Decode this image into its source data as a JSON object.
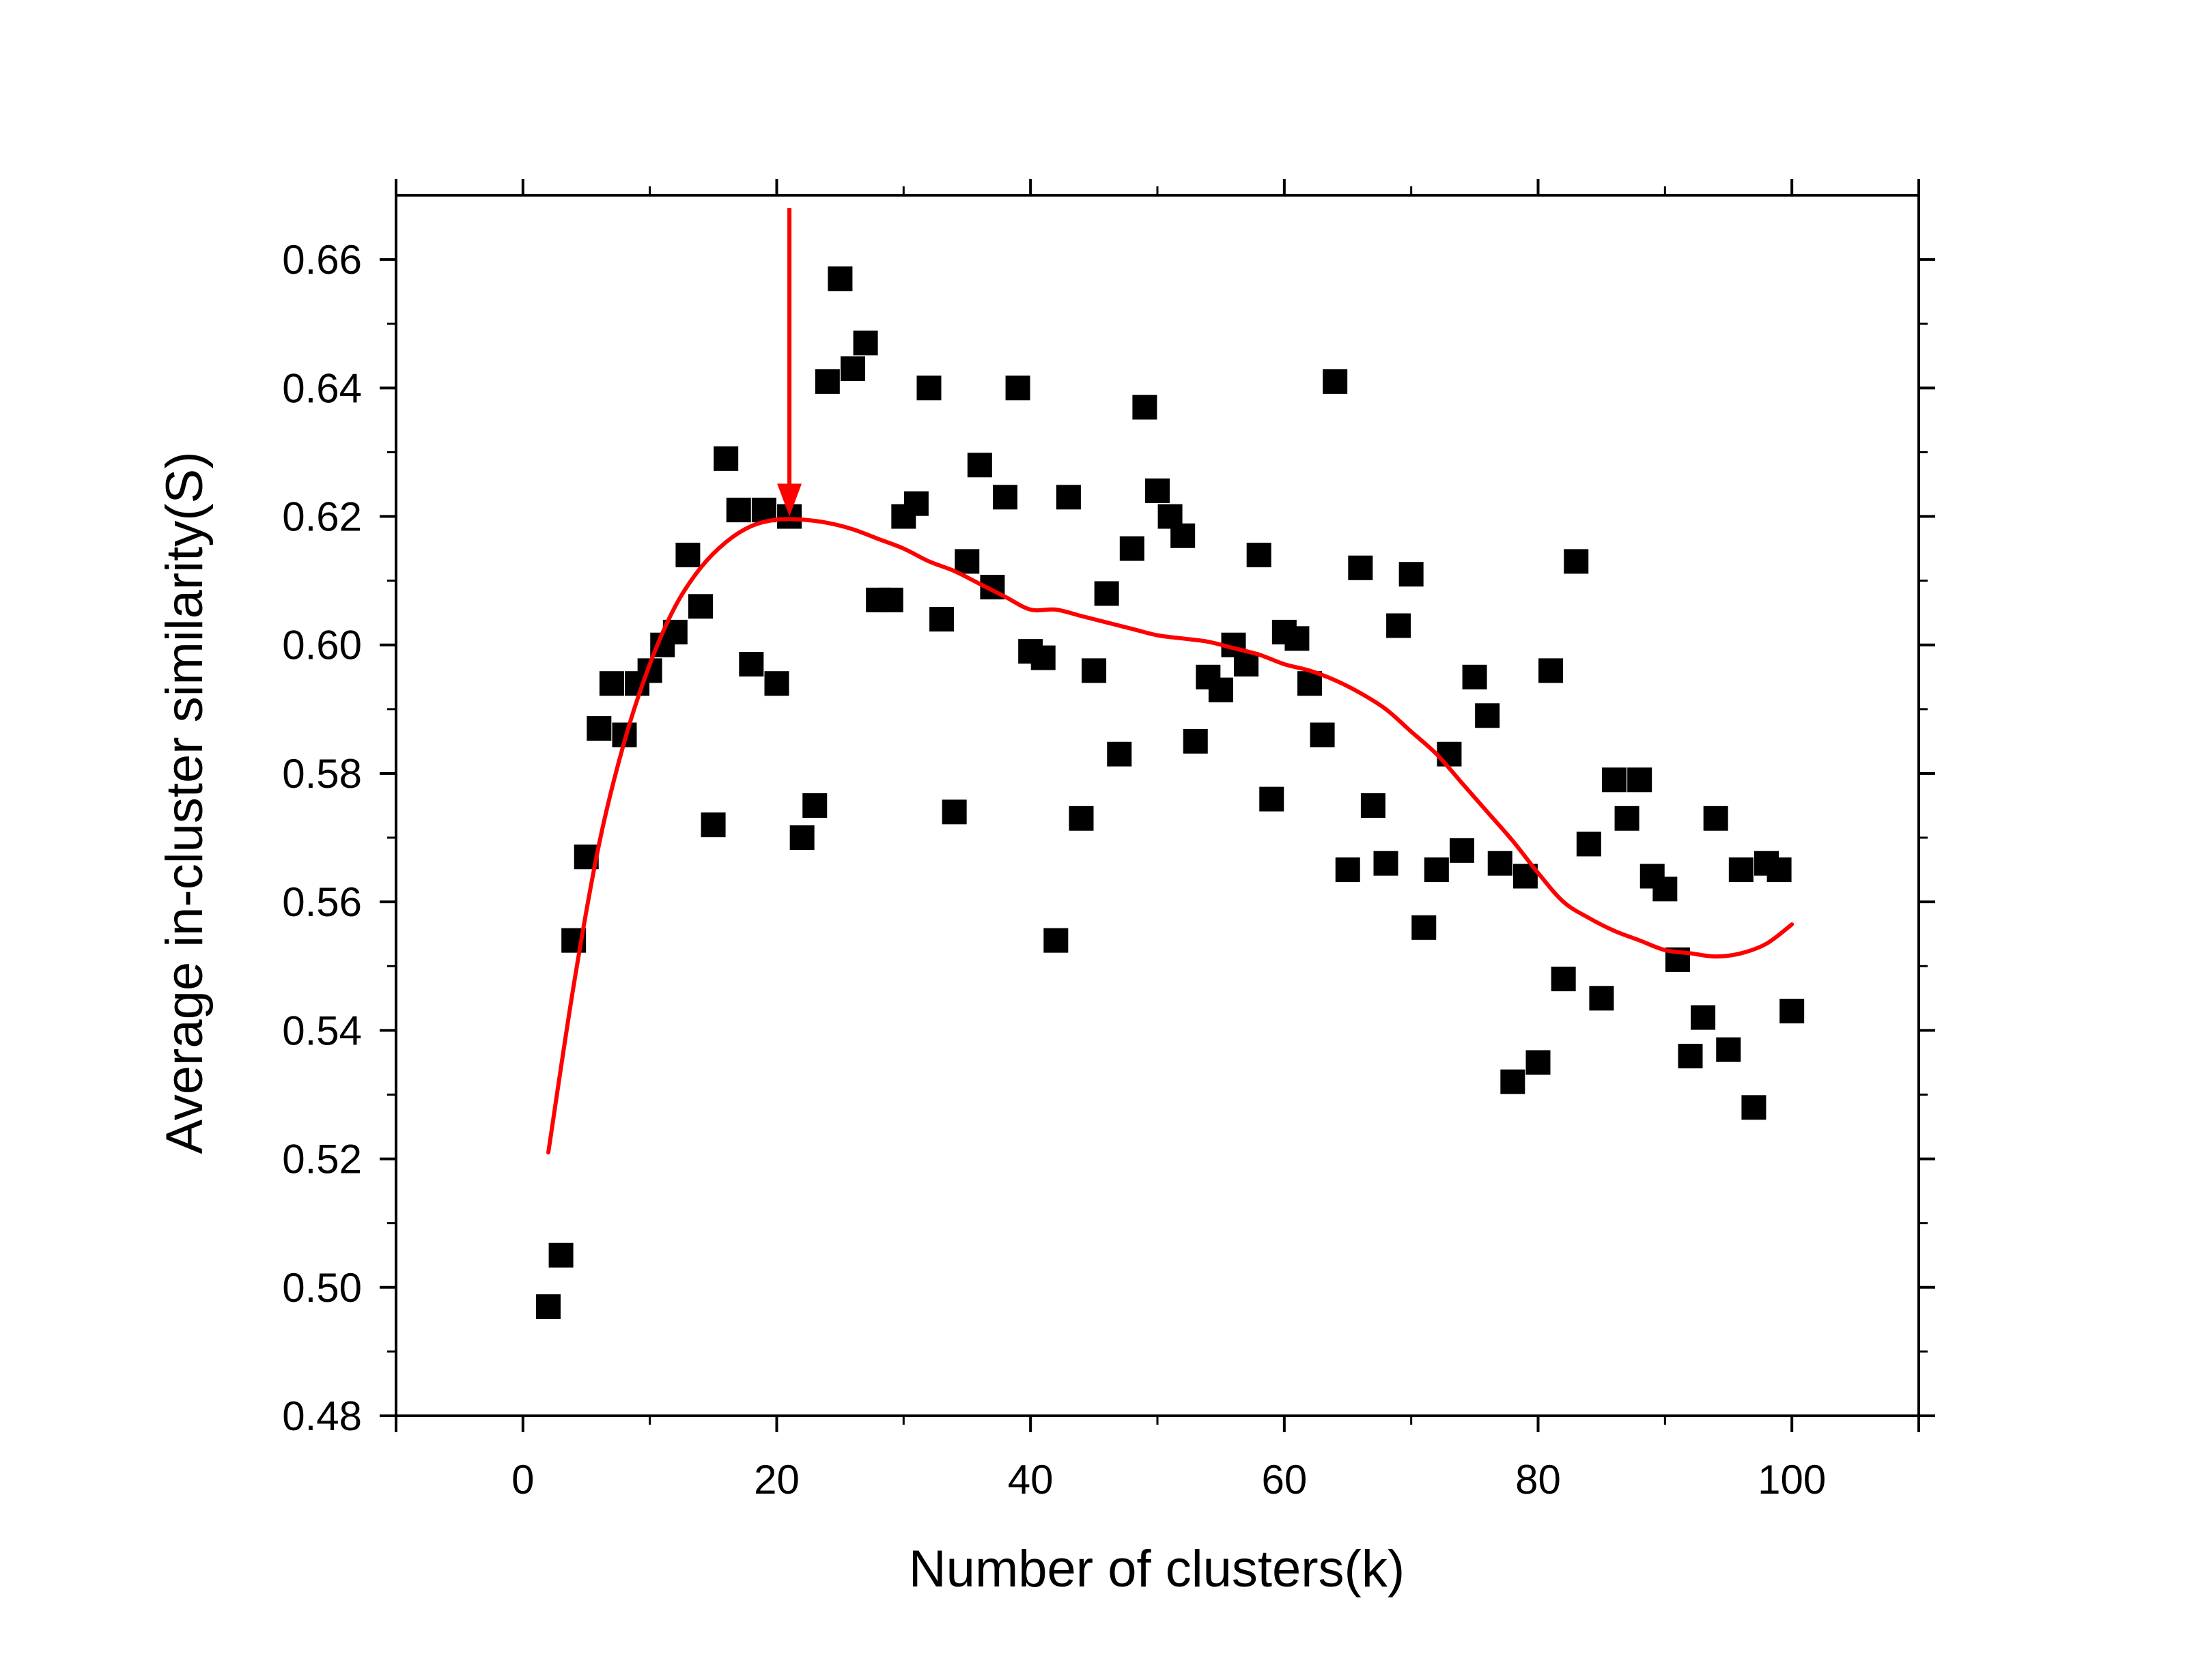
{
  "chart_data": {
    "type": "scatter",
    "title": "",
    "xlabel": "Number of clusters(k)",
    "ylabel": "Average in-cluster similarity(S)",
    "xlim": [
      -10,
      110
    ],
    "ylim": [
      0.48,
      0.67
    ],
    "x_ticks": [
      0,
      20,
      40,
      60,
      80,
      100
    ],
    "y_ticks": [
      0.48,
      0.5,
      0.52,
      0.54,
      0.56,
      0.58,
      0.6,
      0.62,
      0.64,
      0.66
    ],
    "x_tick_labels": [
      "0",
      "20",
      "40",
      "60",
      "80",
      "100"
    ],
    "y_tick_labels": [
      "0.48",
      "0.50",
      "0.52",
      "0.54",
      "0.56",
      "0.58",
      "0.60",
      "0.62",
      "0.64",
      "0.66"
    ],
    "grid": false,
    "legend": "none",
    "series": [
      {
        "type": "scatter",
        "marker": "square",
        "color": "#000000",
        "x": [
          2,
          3,
          4,
          5,
          6,
          7,
          8,
          9,
          10,
          11,
          12,
          13,
          14,
          15,
          16,
          17,
          18,
          19,
          20,
          21,
          22,
          23,
          24,
          25,
          26,
          27,
          28,
          29,
          30,
          31,
          32,
          33,
          34,
          35,
          36,
          37,
          38,
          39,
          40,
          41,
          42,
          43,
          44,
          45,
          46,
          47,
          48,
          49,
          50,
          51,
          52,
          53,
          54,
          55,
          56,
          57,
          58,
          59,
          60,
          61,
          62,
          63,
          64,
          65,
          66,
          67,
          68,
          69,
          70,
          71,
          72,
          73,
          74,
          75,
          76,
          77,
          78,
          79,
          80,
          81,
          82,
          83,
          84,
          85,
          86,
          87,
          88,
          89,
          90,
          91,
          92,
          93,
          94,
          95,
          96,
          97,
          98,
          99,
          100
        ],
        "y": [
          0.497,
          0.505,
          0.554,
          0.567,
          0.587,
          0.594,
          0.586,
          0.594,
          0.596,
          0.6,
          0.602,
          0.614,
          0.606,
          0.572,
          0.629,
          0.621,
          0.597,
          0.621,
          0.594,
          0.62,
          0.57,
          0.575,
          0.641,
          0.657,
          0.643,
          0.647,
          0.607,
          0.607,
          0.62,
          0.622,
          0.64,
          0.604,
          0.574,
          0.613,
          0.628,
          0.609,
          0.623,
          0.64,
          0.599,
          0.598,
          0.554,
          0.623,
          0.573,
          0.596,
          0.608,
          0.583,
          0.615,
          0.637,
          0.624,
          0.62,
          0.617,
          0.585,
          0.595,
          0.593,
          0.6,
          0.597,
          0.614,
          0.576,
          0.602,
          0.601,
          0.594,
          0.586,
          0.641,
          0.565,
          0.612,
          0.575,
          0.566,
          0.603,
          0.611,
          0.556,
          0.565,
          0.583,
          0.568,
          0.595,
          0.589,
          0.566,
          0.532,
          0.564,
          0.535,
          0.596,
          0.548,
          0.613,
          0.569,
          0.545,
          0.579,
          0.573,
          0.579,
          0.564,
          0.562,
          0.551,
          0.536,
          0.542,
          0.573,
          0.537,
          0.565,
          0.528,
          0.566,
          0.565,
          0.543
        ]
      },
      {
        "type": "line",
        "color": "#ff0000",
        "x": [
          2,
          4,
          6,
          8,
          10,
          12,
          14,
          16,
          18,
          20,
          22,
          24,
          26,
          28,
          30,
          32,
          34,
          36,
          38,
          40,
          42,
          44,
          46,
          48,
          50,
          52,
          54,
          56,
          58,
          60,
          62,
          64,
          66,
          68,
          70,
          72,
          74,
          76,
          78,
          80,
          82,
          84,
          86,
          88,
          90,
          92,
          94,
          96,
          98,
          100
        ],
        "y": [
          0.521,
          0.547,
          0.569,
          0.585,
          0.597,
          0.606,
          0.612,
          0.616,
          0.6185,
          0.6195,
          0.6195,
          0.619,
          0.618,
          0.6165,
          0.615,
          0.613,
          0.6115,
          0.6095,
          0.6075,
          0.6055,
          0.6055,
          0.6045,
          0.6035,
          0.6025,
          0.6015,
          0.601,
          0.6005,
          0.5995,
          0.5985,
          0.597,
          0.596,
          0.5945,
          0.5925,
          0.59,
          0.5865,
          0.583,
          0.5785,
          0.574,
          0.5695,
          0.5645,
          0.56,
          0.5575,
          0.5555,
          0.554,
          0.5525,
          0.552,
          0.5515,
          0.552,
          0.5535,
          0.5565
        ]
      }
    ],
    "annotations": [
      {
        "type": "arrow",
        "color": "#ff0000",
        "from": [
          21,
          0.668
        ],
        "to": [
          21,
          0.62
        ]
      }
    ]
  }
}
